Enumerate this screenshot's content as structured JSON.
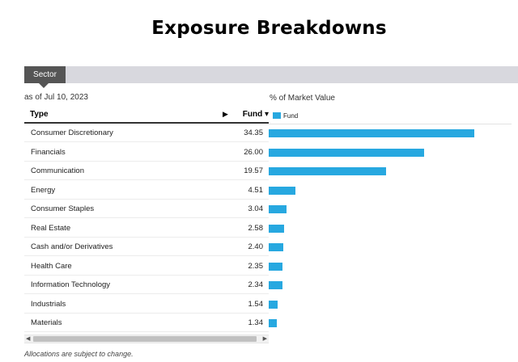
{
  "page_title": "Exposure Breakdowns",
  "tabs": [
    {
      "label": "Sector",
      "active": true
    }
  ],
  "as_of": "as of Jul 10, 2023",
  "chart_label": "% of Market Value",
  "table": {
    "columns": {
      "type": "Type",
      "expand_arrow": "▶",
      "fund": "Fund ▾"
    }
  },
  "legend": {
    "label": "Fund",
    "color": "#27a8e0"
  },
  "chart_data": {
    "type": "bar",
    "orientation": "horizontal",
    "categories": [
      "Consumer Discretionary",
      "Financials",
      "Communication",
      "Energy",
      "Consumer Staples",
      "Real Estate",
      "Cash and/or Derivatives",
      "Health Care",
      "Information Technology",
      "Industrials",
      "Materials"
    ],
    "value_labels": [
      "34.35",
      "26.00",
      "19.57",
      "4.51",
      "3.04",
      "2.58",
      "2.40",
      "2.35",
      "2.34",
      "1.54",
      "1.34"
    ],
    "series": [
      {
        "name": "Fund",
        "values": [
          34.35,
          26.0,
          19.57,
          4.51,
          3.04,
          2.58,
          2.4,
          2.35,
          2.34,
          1.54,
          1.34
        ]
      }
    ],
    "xlabel": "% of Market Value",
    "xlim": [
      0,
      40
    ],
    "legend": "top-left",
    "grid": false
  },
  "scrollbar": {
    "left_arrow": "◀",
    "right_arrow": "▶"
  },
  "footnote": "Allocations are subject to change."
}
